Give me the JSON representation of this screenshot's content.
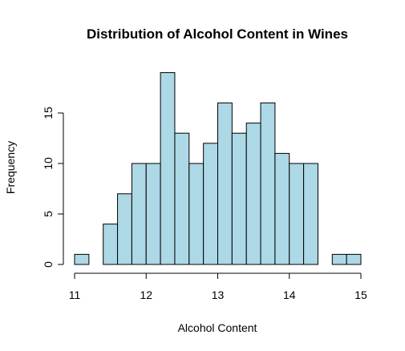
{
  "chart_data": {
    "type": "bar",
    "title": "Distribution of Alcohol Content in Wines",
    "xlabel": "Alcohol Content",
    "ylabel": "Frequency",
    "xlim": [
      11,
      15
    ],
    "ylim": [
      0,
      19
    ],
    "bin_width": 0.2,
    "bins": [
      {
        "start": 11.0,
        "end": 11.2,
        "count": 1
      },
      {
        "start": 11.2,
        "end": 11.4,
        "count": 0
      },
      {
        "start": 11.4,
        "end": 11.6,
        "count": 4
      },
      {
        "start": 11.6,
        "end": 11.8,
        "count": 7
      },
      {
        "start": 11.8,
        "end": 12.0,
        "count": 10
      },
      {
        "start": 12.0,
        "end": 12.2,
        "count": 10
      },
      {
        "start": 12.2,
        "end": 12.4,
        "count": 19
      },
      {
        "start": 12.4,
        "end": 12.6,
        "count": 13
      },
      {
        "start": 12.6,
        "end": 12.8,
        "count": 10
      },
      {
        "start": 12.8,
        "end": 13.0,
        "count": 12
      },
      {
        "start": 13.0,
        "end": 13.2,
        "count": 16
      },
      {
        "start": 13.2,
        "end": 13.4,
        "count": 13
      },
      {
        "start": 13.4,
        "end": 13.6,
        "count": 14
      },
      {
        "start": 13.6,
        "end": 13.8,
        "count": 16
      },
      {
        "start": 13.8,
        "end": 14.0,
        "count": 11
      },
      {
        "start": 14.0,
        "end": 14.2,
        "count": 10
      },
      {
        "start": 14.2,
        "end": 14.4,
        "count": 10
      },
      {
        "start": 14.4,
        "end": 14.6,
        "count": 0
      },
      {
        "start": 14.6,
        "end": 14.8,
        "count": 1
      },
      {
        "start": 14.8,
        "end": 15.0,
        "count": 1
      }
    ],
    "x_ticks": [
      11,
      12,
      13,
      14,
      15
    ],
    "x_tick_labels": [
      "11",
      "12",
      "13",
      "14",
      "15"
    ],
    "y_ticks": [
      0,
      5,
      10,
      15
    ],
    "y_tick_labels": [
      "0",
      "5",
      "10",
      "15"
    ],
    "bar_color": "#add8e6",
    "grid": false,
    "legend": "none"
  }
}
